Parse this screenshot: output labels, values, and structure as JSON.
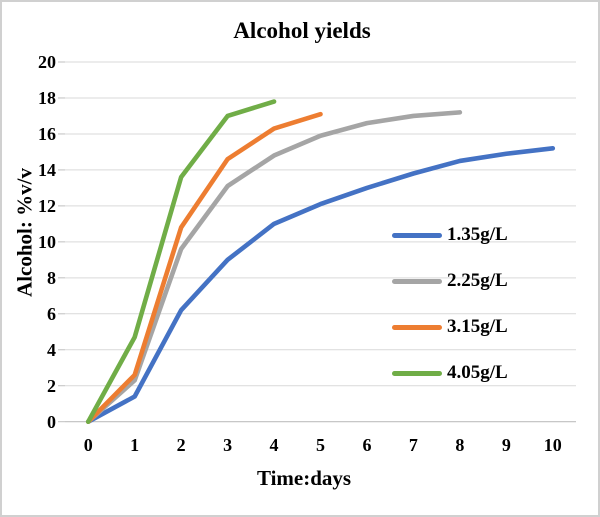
{
  "chart_data": {
    "type": "line",
    "title": "Alcohol yields",
    "xlabel": "Time:days",
    "ylabel": "Alcohol: %v/v",
    "xlim": [
      0,
      10
    ],
    "ylim": [
      0,
      20
    ],
    "ytick_step": 2,
    "grid": "horizontal",
    "legend_position": "inside-right",
    "xtick_labels": [
      "0",
      "1",
      "2",
      "3",
      "4",
      "5",
      "6",
      "7",
      "8",
      "9",
      "10"
    ],
    "ytick_labels": [
      "0",
      "2",
      "4",
      "6",
      "8",
      "10",
      "12",
      "14",
      "16",
      "18",
      "20"
    ],
    "series": [
      {
        "name": "1.35g/L",
        "color": "#4472C4",
        "x": [
          0,
          1,
          2,
          3,
          4,
          5,
          6,
          7,
          8,
          9,
          10
        ],
        "values": [
          0,
          1.4,
          6.2,
          9.0,
          11.0,
          12.1,
          13.0,
          13.8,
          14.5,
          14.9,
          15.2
        ]
      },
      {
        "name": "2.25g/L",
        "color": "#A5A5A5",
        "x": [
          0,
          1,
          2,
          3,
          4,
          5,
          6,
          7,
          8
        ],
        "values": [
          0,
          2.3,
          9.6,
          13.1,
          14.8,
          15.9,
          16.6,
          17.0,
          17.2
        ]
      },
      {
        "name": "3.15g/L",
        "color": "#ED7D31",
        "x": [
          0,
          1,
          2,
          3,
          4,
          5
        ],
        "values": [
          0,
          2.6,
          10.8,
          14.6,
          16.3,
          17.1
        ]
      },
      {
        "name": "4.05g/L",
        "color": "#70AD47",
        "x": [
          0,
          1,
          2,
          3,
          4
        ],
        "values": [
          0,
          4.7,
          13.6,
          17.0,
          17.8
        ]
      }
    ],
    "colors": {
      "gridline": "#D9D9D9",
      "axis_line": "#BFBFBF",
      "text": "#000000",
      "background": "#FFFFFF",
      "frame_border": "#D0D0D0"
    }
  }
}
